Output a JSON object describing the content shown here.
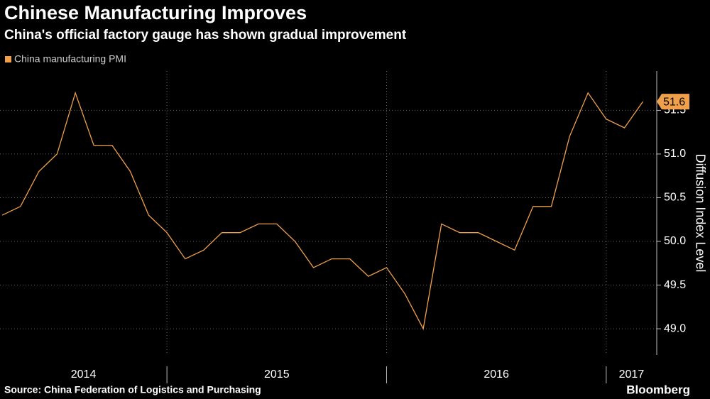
{
  "chart_data": {
    "type": "line",
    "title": "Chinese Manufacturing Improves",
    "subtitle": "China's official factory gauge has shown gradual improvement",
    "y_axis_label": "Diffusion Index Level",
    "source": "Source: China Federation of Logistics and Purchasing",
    "brand": "Bloomberg",
    "x": [
      2014.25,
      2014.333,
      2014.417,
      2014.5,
      2014.583,
      2014.667,
      2014.75,
      2014.833,
      2014.917,
      2015.0,
      2015.083,
      2015.167,
      2015.25,
      2015.333,
      2015.417,
      2015.5,
      2015.583,
      2015.667,
      2015.75,
      2015.833,
      2015.917,
      2016.0,
      2016.083,
      2016.167,
      2016.25,
      2016.333,
      2016.417,
      2016.5,
      2016.583,
      2016.667,
      2016.75,
      2016.833,
      2016.917,
      2017.0,
      2017.083,
      2017.167
    ],
    "series": [
      {
        "name": "China manufacturing PMI",
        "color": "#f0a04b",
        "values": [
          50.3,
          50.4,
          50.8,
          51.0,
          51.7,
          51.1,
          51.1,
          50.8,
          50.3,
          50.1,
          49.8,
          49.9,
          50.1,
          50.1,
          50.2,
          50.2,
          50.0,
          49.7,
          49.8,
          49.8,
          49.6,
          49.7,
          49.4,
          49.0,
          50.2,
          50.1,
          50.1,
          50.0,
          49.9,
          50.4,
          50.4,
          51.2,
          51.7,
          51.4,
          51.3,
          51.6
        ]
      }
    ],
    "xlim": [
      2014.24,
      2017.23
    ],
    "xticks": [
      {
        "value": 2014,
        "label": "2014"
      },
      {
        "value": 2015,
        "label": "2015"
      },
      {
        "value": 2016,
        "label": "2016"
      },
      {
        "value": 2017,
        "label": "2017"
      }
    ],
    "ylim": [
      48.7,
      51.95
    ],
    "yticks": [
      {
        "value": 49.0,
        "label": "49.0"
      },
      {
        "value": 49.5,
        "label": "49.5"
      },
      {
        "value": 50.0,
        "label": "50.0"
      },
      {
        "value": 50.5,
        "label": "50.5"
      },
      {
        "value": 51.0,
        "label": "51.0"
      },
      {
        "value": 51.5,
        "label": "51.5"
      }
    ],
    "grid": true
  }
}
